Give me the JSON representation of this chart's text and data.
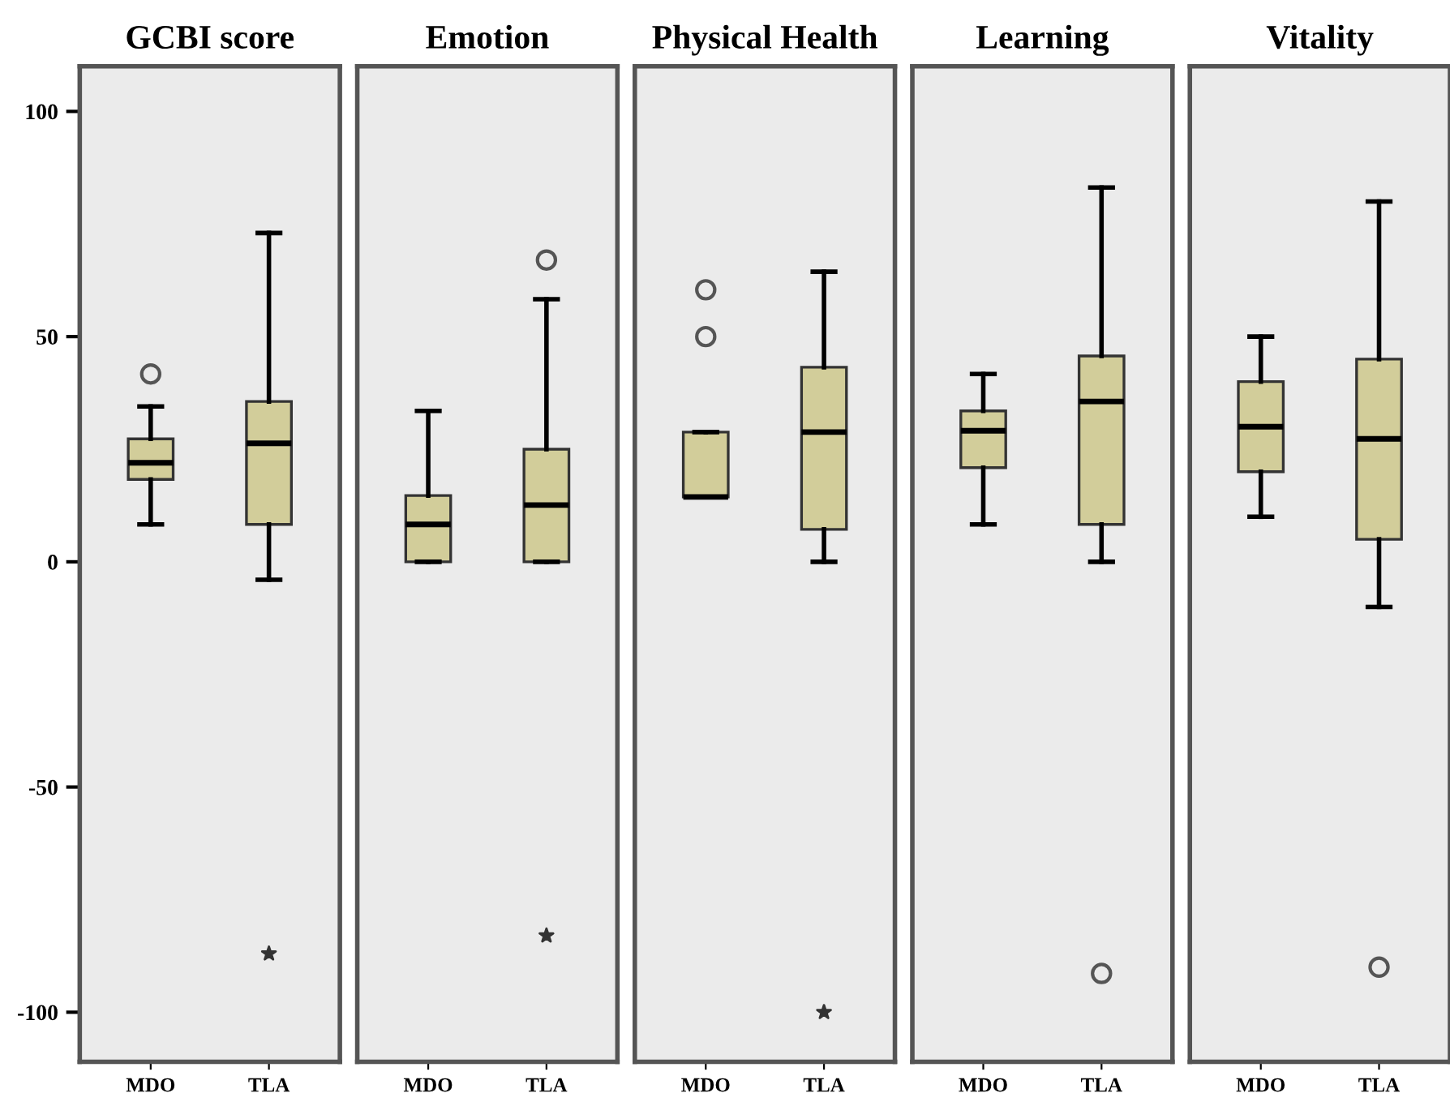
{
  "chart_data": [
    {
      "type": "box",
      "title": "GCBI score",
      "categories": [
        "MDO",
        "TLA"
      ],
      "ylim": [
        -111,
        110
      ],
      "yticks": [
        -100,
        -50,
        0,
        50,
        100
      ],
      "grid": false,
      "series": [
        {
          "color": "#d2cd9a",
          "boxes": [
            {
              "low": 8.3,
              "q1": 18.3,
              "median": 22,
              "q3": 27.3,
              "high": 34.5,
              "outliers": [
                41.7
              ]
            },
            {
              "low": -4,
              "q1": 8.3,
              "median": 26.3,
              "q3": 35.6,
              "high": 73
            }
          ]
        },
        {
          "type": "scatter",
          "marker": "star",
          "color": "#333333",
          "x": [
            "TLA"
          ],
          "values": [
            -87
          ]
        }
      ]
    },
    {
      "type": "box",
      "title": "Emotion",
      "categories": [
        "MDO",
        "TLA"
      ],
      "ylim": [
        -111,
        110
      ],
      "tick_labels": "x",
      "grid": false,
      "series": [
        {
          "color": "#d2cd9a",
          "boxes": [
            {
              "low": 0,
              "q1": 0,
              "median": 8.3,
              "q3": 14.7,
              "high": 33.5
            },
            {
              "low": 0,
              "q1": 0,
              "median": 12.6,
              "q3": 25,
              "high": 58.3,
              "outliers": [
                67
              ]
            }
          ]
        },
        {
          "type": "scatter",
          "marker": "star",
          "color": "#333333",
          "x": [
            "TLA"
          ],
          "values": [
            -83
          ]
        }
      ]
    },
    {
      "type": "box",
      "title": "Physical Health",
      "categories": [
        "MDO",
        "TLA"
      ],
      "ylim": [
        -111,
        110
      ],
      "tick_labels": "x",
      "grid": false,
      "series": [
        {
          "color": "#d2cd9a",
          "boxes": [
            {
              "low": 14.4,
              "q1": 14.4,
              "median": 14.4,
              "q3": 28.8,
              "high": 28.8,
              "outliers": [
                60.4,
                50
              ]
            },
            {
              "low": 0,
              "q1": 7.2,
              "median": 28.8,
              "q3": 43.2,
              "high": 64.4
            }
          ]
        },
        {
          "type": "scatter",
          "marker": "star",
          "color": "#333333",
          "x": [
            "TLA"
          ],
          "values": [
            -100
          ]
        }
      ]
    },
    {
      "type": "box",
      "title": "Learning",
      "categories": [
        "MDO",
        "TLA"
      ],
      "ylim": [
        -111,
        110
      ],
      "tick_labels": "x",
      "grid": false,
      "series": [
        {
          "color": "#d2cd9a",
          "boxes": [
            {
              "low": 8.3,
              "q1": 20.9,
              "median": 29.1,
              "q3": 33.5,
              "high": 41.7
            },
            {
              "low": 0,
              "q1": 8.3,
              "median": 35.6,
              "q3": 45.7,
              "high": 83.1,
              "outliers": [
                -91.4
              ]
            }
          ]
        }
      ]
    },
    {
      "type": "box",
      "title": "Vitality",
      "categories": [
        "MDO",
        "TLA"
      ],
      "ylim": [
        -111,
        110
      ],
      "tick_labels": "x",
      "grid": false,
      "series": [
        {
          "color": "#d2cd9a",
          "boxes": [
            {
              "low": 10,
              "q1": 20,
              "median": 30,
              "q3": 40,
              "high": 50
            },
            {
              "low": -10,
              "q1": 5,
              "median": 27.3,
              "q3": 45,
              "high": 80,
              "outliers": [
                -90
              ]
            }
          ]
        }
      ]
    }
  ]
}
